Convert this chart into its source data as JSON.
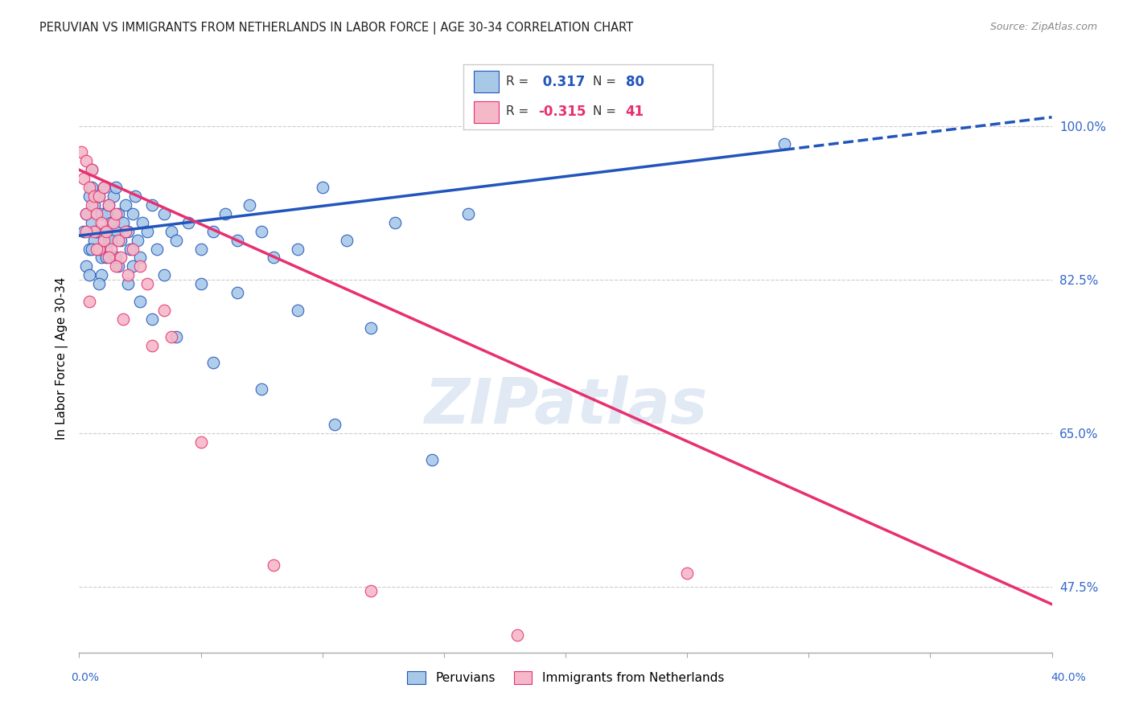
{
  "title": "PERUVIAN VS IMMIGRANTS FROM NETHERLANDS IN LABOR FORCE | AGE 30-34 CORRELATION CHART",
  "source": "Source: ZipAtlas.com",
  "ylabel": "In Labor Force | Age 30-34",
  "yticks": [
    47.5,
    65.0,
    82.5,
    100.0
  ],
  "xmin": 0.0,
  "xmax": 40.0,
  "ymin": 40.0,
  "ymax": 107.0,
  "blue_R": 0.317,
  "blue_N": 80,
  "pink_R": -0.315,
  "pink_N": 41,
  "blue_color": "#a8c8e8",
  "pink_color": "#f4b8c8",
  "blue_line_color": "#2255bb",
  "pink_line_color": "#e83070",
  "legend_label_blue": "Peruvians",
  "legend_label_pink": "Immigrants from Netherlands",
  "blue_trend_x0": 0.0,
  "blue_trend_y0": 87.5,
  "blue_trend_x1": 40.0,
  "blue_trend_y1": 101.0,
  "blue_solid_end_x": 29.0,
  "pink_trend_x0": 0.0,
  "pink_trend_y0": 95.0,
  "pink_trend_x1": 40.0,
  "pink_trend_y1": 45.5,
  "blue_scatter_x": [
    0.2,
    0.3,
    0.4,
    0.4,
    0.5,
    0.5,
    0.5,
    0.6,
    0.6,
    0.7,
    0.8,
    0.8,
    0.9,
    0.9,
    1.0,
    1.0,
    1.1,
    1.1,
    1.2,
    1.2,
    1.3,
    1.4,
    1.4,
    1.5,
    1.5,
    1.6,
    1.7,
    1.8,
    1.9,
    2.0,
    2.1,
    2.2,
    2.3,
    2.4,
    2.5,
    2.6,
    2.8,
    3.0,
    3.2,
    3.5,
    3.8,
    4.0,
    4.5,
    5.0,
    5.5,
    6.0,
    6.5,
    7.0,
    7.5,
    8.0,
    9.0,
    10.0,
    11.0,
    13.0,
    16.0,
    0.3,
    0.5,
    0.7,
    0.9,
    1.1,
    1.3,
    1.6,
    2.0,
    2.5,
    3.0,
    4.0,
    5.5,
    7.5,
    10.5,
    14.5,
    0.4,
    0.8,
    1.5,
    2.2,
    3.5,
    5.0,
    6.5,
    9.0,
    12.0,
    29.0
  ],
  "blue_scatter_y": [
    88.0,
    90.0,
    92.0,
    86.0,
    95.0,
    89.0,
    93.0,
    91.0,
    87.0,
    88.0,
    92.0,
    86.0,
    90.0,
    85.0,
    88.0,
    93.0,
    90.0,
    86.0,
    91.0,
    87.0,
    89.0,
    92.0,
    85.0,
    88.0,
    93.0,
    90.0,
    87.0,
    89.0,
    91.0,
    88.0,
    86.0,
    90.0,
    92.0,
    87.0,
    85.0,
    89.0,
    88.0,
    91.0,
    86.0,
    90.0,
    88.0,
    87.0,
    89.0,
    86.0,
    88.0,
    90.0,
    87.0,
    91.0,
    88.0,
    85.0,
    86.0,
    93.0,
    87.0,
    89.0,
    90.0,
    84.0,
    86.0,
    88.0,
    83.0,
    85.0,
    87.0,
    84.0,
    82.0,
    80.0,
    78.0,
    76.0,
    73.0,
    70.0,
    66.0,
    62.0,
    83.0,
    82.0,
    85.0,
    84.0,
    83.0,
    82.0,
    81.0,
    79.0,
    77.0,
    98.0
  ],
  "pink_scatter_x": [
    0.1,
    0.2,
    0.3,
    0.3,
    0.4,
    0.5,
    0.5,
    0.6,
    0.6,
    0.7,
    0.8,
    0.8,
    0.9,
    1.0,
    1.0,
    1.1,
    1.2,
    1.3,
    1.4,
    1.5,
    1.6,
    1.7,
    1.9,
    2.0,
    2.2,
    2.5,
    2.8,
    3.5,
    0.4,
    1.2,
    1.8,
    3.0,
    5.0,
    8.0,
    12.0,
    18.0,
    0.3,
    0.7,
    1.5,
    25.0,
    3.8
  ],
  "pink_scatter_y": [
    97.0,
    94.0,
    96.0,
    90.0,
    93.0,
    95.0,
    91.0,
    92.0,
    88.0,
    90.0,
    86.0,
    92.0,
    89.0,
    93.0,
    87.0,
    88.0,
    91.0,
    86.0,
    89.0,
    90.0,
    87.0,
    85.0,
    88.0,
    83.0,
    86.0,
    84.0,
    82.0,
    79.0,
    80.0,
    85.0,
    78.0,
    75.0,
    64.0,
    50.0,
    47.0,
    42.0,
    88.0,
    86.0,
    84.0,
    49.0,
    76.0
  ]
}
